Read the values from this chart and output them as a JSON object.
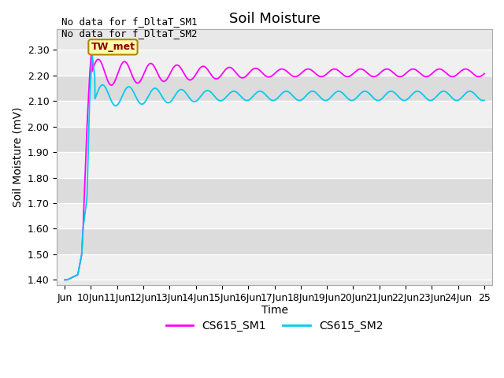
{
  "title": "Soil Moisture",
  "ylabel": "Soil Moisture (mV)",
  "xlabel": "Time",
  "ylim": [
    1.4,
    2.4
  ],
  "yticks": [
    1.4,
    1.5,
    1.6,
    1.7,
    1.8,
    1.9,
    2.0,
    2.1,
    2.2,
    2.3
  ],
  "xtick_labels": [
    "Jun",
    "10Jun",
    "11Jun",
    "12Jun",
    "13Jun",
    "14Jun",
    "15Jun",
    "16Jun",
    "17Jun",
    "18Jun",
    "19Jun",
    "20Jun",
    "21Jun",
    "22Jun",
    "23Jun",
    "24Jun",
    "25"
  ],
  "bg_color": "#e8e8e8",
  "stripe_light": "#f0f0f0",
  "stripe_dark": "#dcdcdc",
  "line1_color": "#ff00ff",
  "line2_color": "#00ccee",
  "legend_entries": [
    "CS615_SM1",
    "CS615_SM2"
  ],
  "annotation_text1": "No data for f_DltaT_SM1",
  "annotation_text2": "No data for f_DltaT_SM2",
  "box_label": "TW_met",
  "box_facecolor": "#ffffaa",
  "box_edgecolor": "#aa8800",
  "title_fontsize": 13,
  "axis_label_fontsize": 10,
  "tick_fontsize": 9,
  "annotation_fontsize": 9
}
